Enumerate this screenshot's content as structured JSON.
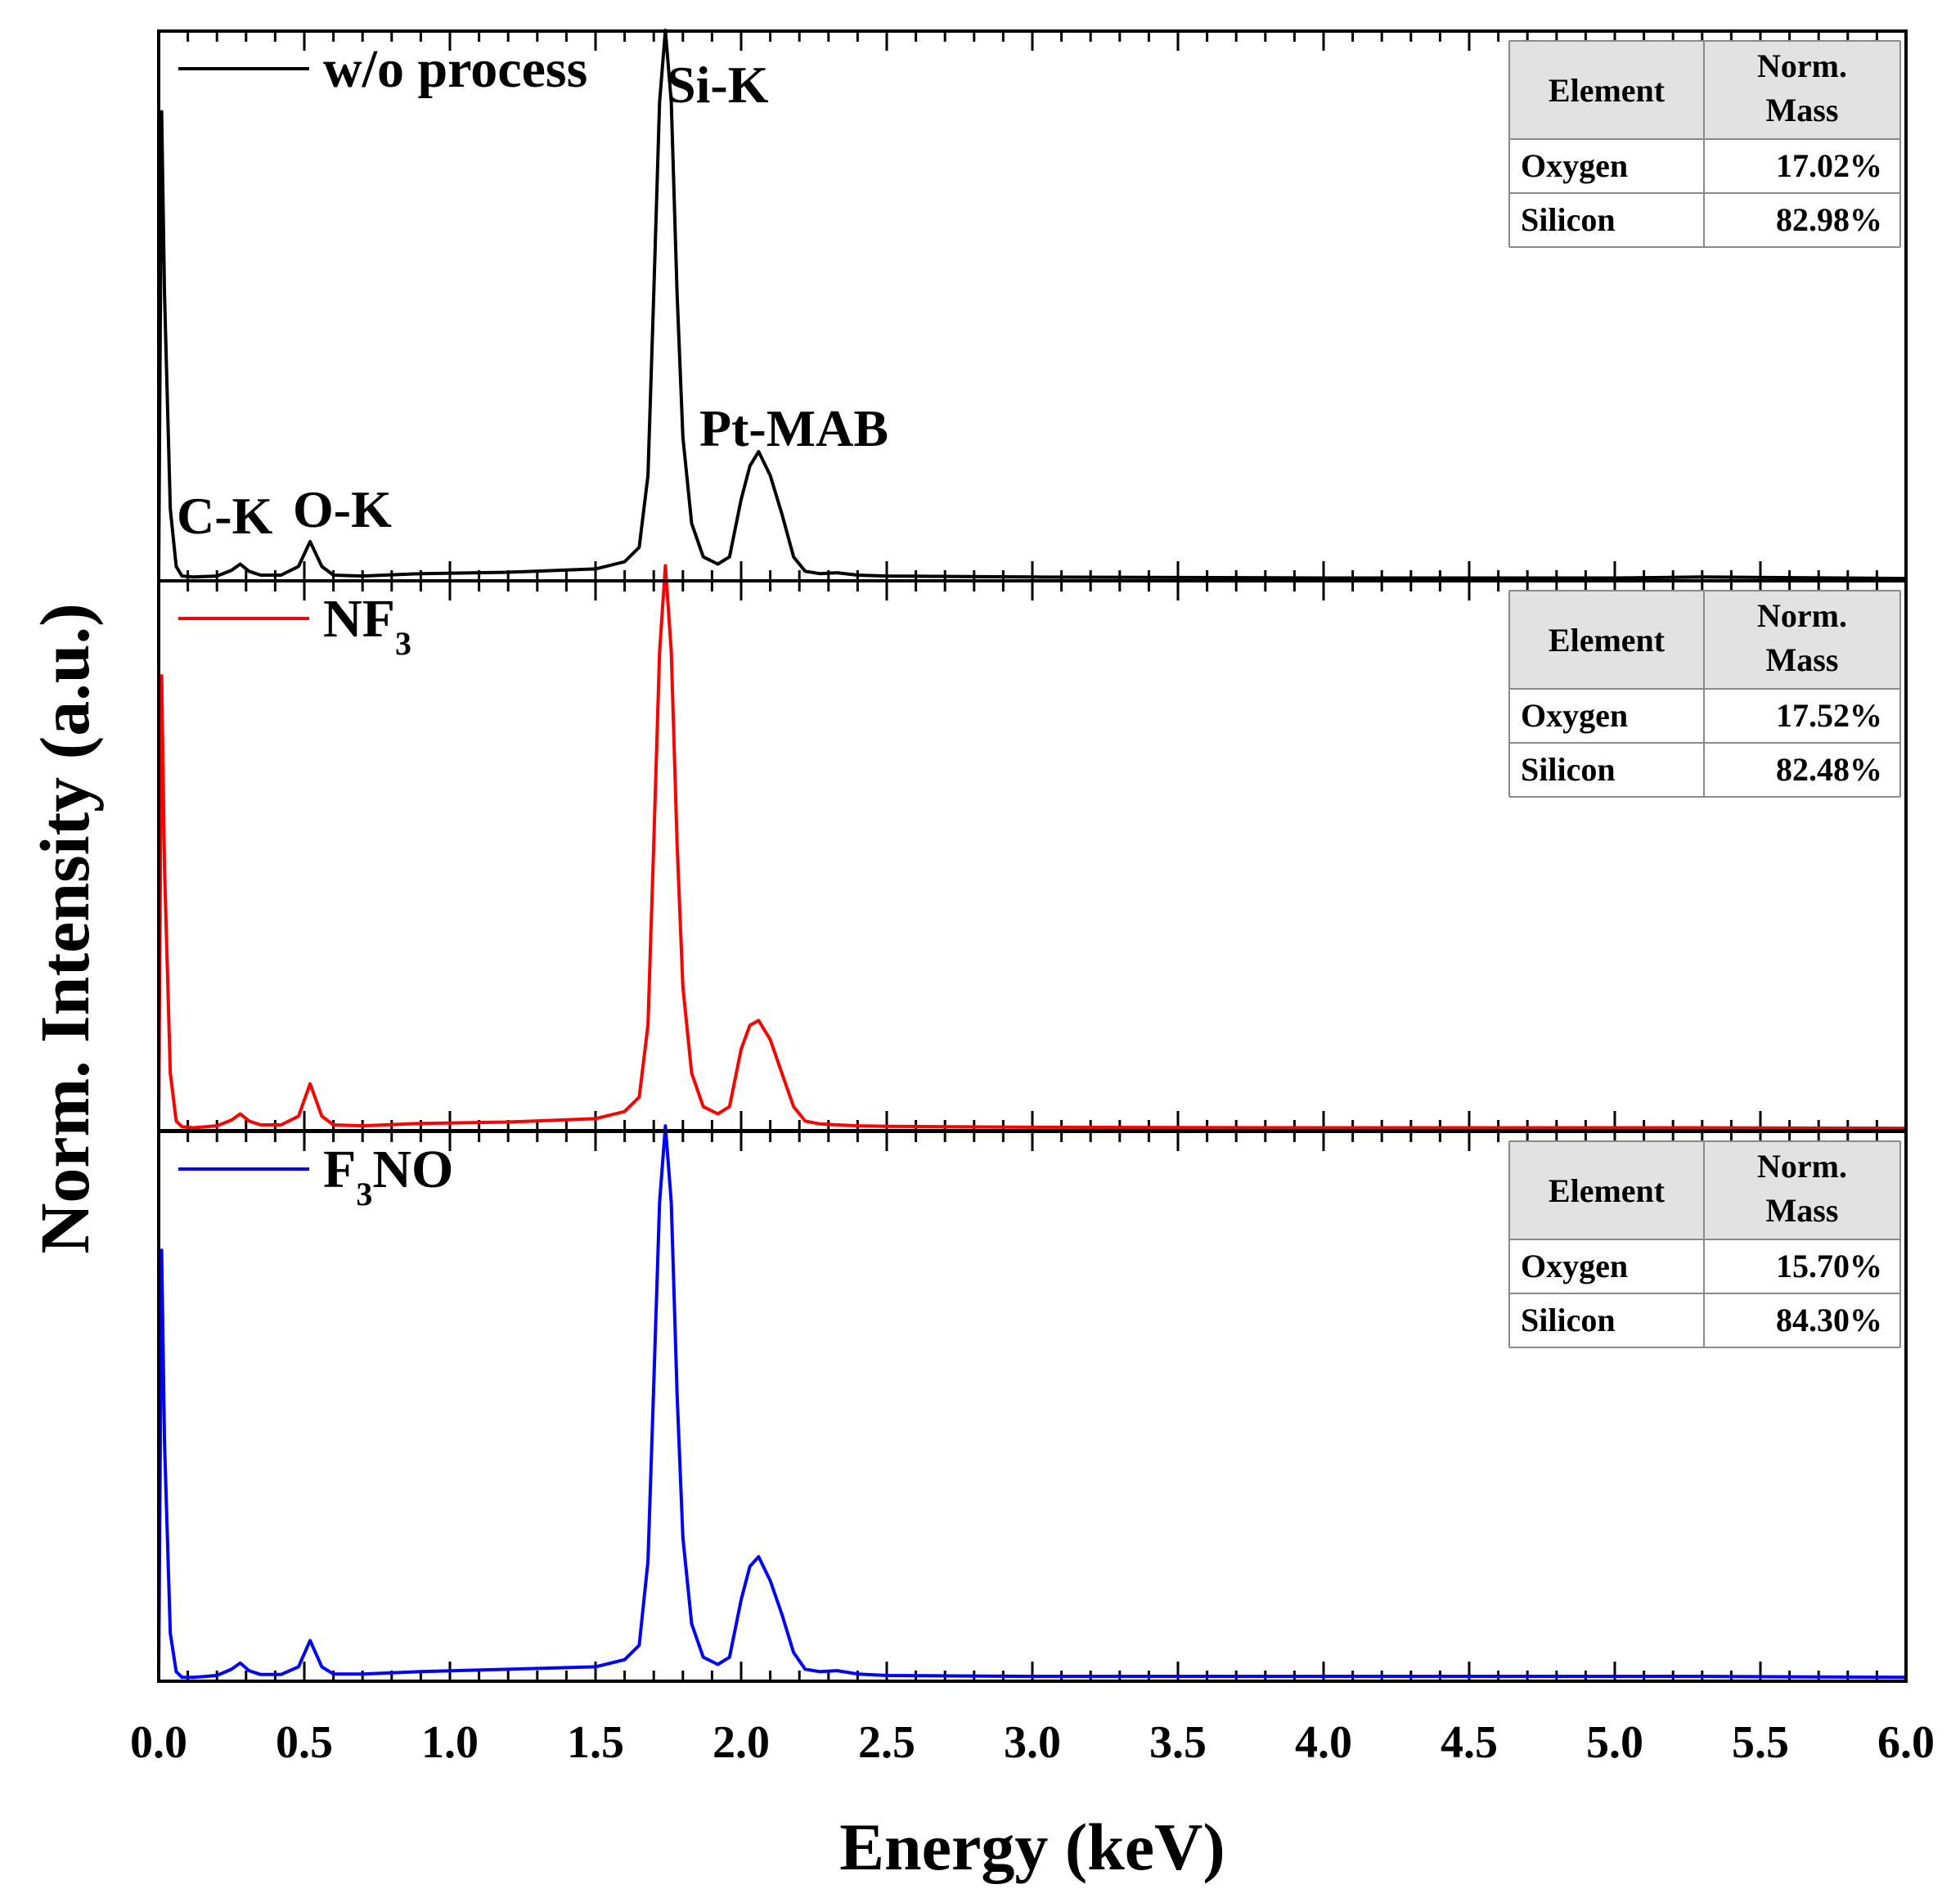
{
  "chart_data": {
    "type": "line",
    "layout": "stacked-panels",
    "xlabel": "Energy (keV)",
    "ylabel": "Norm. Intensity (a.u.)",
    "xlim": [
      0.0,
      6.0
    ],
    "x_ticks": [
      "0.0",
      "0.5",
      "1.0",
      "1.5",
      "2.0",
      "2.5",
      "3.0",
      "3.5",
      "4.0",
      "4.5",
      "5.0",
      "5.5",
      "6.0"
    ],
    "ylim": [
      0,
      1.08
    ],
    "peaks": [
      {
        "label": "C-K",
        "energy": 0.277
      },
      {
        "label": "O-K",
        "energy": 0.525
      },
      {
        "label": "Si-K",
        "energy": 1.74
      },
      {
        "label": "Pt-MAB",
        "energy": 2.05
      }
    ],
    "table_headers": {
      "element": "Element",
      "mass_line1": "Norm.",
      "mass_line2": "Mass"
    },
    "series": [
      {
        "name": "w/o process",
        "legend_main": "w/o process",
        "legend_sub": "",
        "legend_tail": "",
        "color": "#000000",
        "table": [
          {
            "element": "Oxygen",
            "mass": "17.02%"
          },
          {
            "element": "Silicon",
            "mass": "82.98%"
          }
        ],
        "x": [
          0.0,
          0.01,
          0.02,
          0.04,
          0.06,
          0.08,
          0.12,
          0.2,
          0.25,
          0.28,
          0.31,
          0.35,
          0.42,
          0.48,
          0.52,
          0.56,
          0.6,
          0.7,
          0.9,
          1.2,
          1.5,
          1.6,
          1.65,
          1.68,
          1.7,
          1.72,
          1.74,
          1.76,
          1.78,
          1.8,
          1.83,
          1.87,
          1.92,
          1.96,
          2.0,
          2.03,
          2.06,
          2.1,
          2.14,
          2.18,
          2.22,
          2.27,
          2.33,
          2.4,
          2.5,
          3.0,
          4.0,
          5.0,
          5.3,
          6.0
        ],
        "y": [
          0.02,
          0.98,
          0.6,
          0.15,
          0.03,
          0.01,
          0.008,
          0.01,
          0.022,
          0.035,
          0.02,
          0.012,
          0.012,
          0.03,
          0.082,
          0.03,
          0.012,
          0.01,
          0.015,
          0.018,
          0.025,
          0.04,
          0.07,
          0.22,
          0.6,
          1.0,
          1.15,
          1.0,
          0.6,
          0.3,
          0.12,
          0.05,
          0.035,
          0.05,
          0.17,
          0.24,
          0.27,
          0.22,
          0.14,
          0.05,
          0.02,
          0.015,
          0.017,
          0.012,
          0.01,
          0.008,
          0.006,
          0.006,
          0.008,
          0.005
        ]
      },
      {
        "name": "NF3",
        "legend_main": "NF",
        "legend_sub": "3",
        "legend_tail": "",
        "color": "#ff0000",
        "table": [
          {
            "element": "Oxygen",
            "mass": "17.52%"
          },
          {
            "element": "Silicon",
            "mass": "82.48%"
          }
        ],
        "x": [
          0.0,
          0.01,
          0.02,
          0.04,
          0.06,
          0.08,
          0.12,
          0.2,
          0.25,
          0.28,
          0.31,
          0.35,
          0.42,
          0.48,
          0.52,
          0.56,
          0.6,
          0.7,
          0.9,
          1.2,
          1.5,
          1.6,
          1.65,
          1.68,
          1.7,
          1.72,
          1.74,
          1.76,
          1.78,
          1.8,
          1.83,
          1.87,
          1.92,
          1.96,
          2.0,
          2.03,
          2.06,
          2.1,
          2.14,
          2.18,
          2.22,
          2.27,
          2.33,
          2.4,
          2.5,
          3.0,
          4.0,
          5.0,
          5.3,
          6.0
        ],
        "y": [
          0.02,
          0.95,
          0.55,
          0.12,
          0.02,
          0.008,
          0.006,
          0.01,
          0.022,
          0.035,
          0.02,
          0.012,
          0.012,
          0.03,
          0.098,
          0.03,
          0.012,
          0.01,
          0.015,
          0.018,
          0.025,
          0.04,
          0.07,
          0.22,
          0.6,
          1.0,
          1.18,
          1.0,
          0.6,
          0.3,
          0.12,
          0.05,
          0.035,
          0.05,
          0.17,
          0.22,
          0.23,
          0.19,
          0.12,
          0.05,
          0.02,
          0.014,
          0.012,
          0.01,
          0.009,
          0.007,
          0.006,
          0.006,
          0.006,
          0.005
        ]
      },
      {
        "name": "F3NO",
        "legend_main": "F",
        "legend_sub": "3",
        "legend_tail": "NO",
        "color": "#0000ff",
        "table": [
          {
            "element": "Oxygen",
            "mass": "15.70%"
          },
          {
            "element": "Silicon",
            "mass": "84.30%"
          }
        ],
        "x": [
          0.0,
          0.01,
          0.02,
          0.04,
          0.06,
          0.08,
          0.12,
          0.2,
          0.25,
          0.28,
          0.31,
          0.35,
          0.42,
          0.48,
          0.52,
          0.56,
          0.6,
          0.7,
          0.9,
          1.2,
          1.5,
          1.6,
          1.65,
          1.68,
          1.7,
          1.72,
          1.74,
          1.76,
          1.78,
          1.8,
          1.83,
          1.87,
          1.92,
          1.96,
          2.0,
          2.03,
          2.06,
          2.1,
          2.14,
          2.18,
          2.22,
          2.27,
          2.33,
          2.4,
          2.5,
          3.0,
          4.0,
          5.0,
          5.3,
          6.0
        ],
        "y": [
          0.02,
          0.9,
          0.5,
          0.1,
          0.02,
          0.008,
          0.008,
          0.012,
          0.025,
          0.038,
          0.022,
          0.014,
          0.014,
          0.03,
          0.085,
          0.03,
          0.015,
          0.015,
          0.02,
          0.025,
          0.03,
          0.045,
          0.075,
          0.25,
          0.62,
          1.0,
          1.16,
          1.0,
          0.6,
          0.3,
          0.12,
          0.05,
          0.035,
          0.05,
          0.17,
          0.24,
          0.26,
          0.21,
          0.14,
          0.06,
          0.025,
          0.02,
          0.022,
          0.015,
          0.012,
          0.01,
          0.01,
          0.01,
          0.01,
          0.008
        ]
      }
    ]
  }
}
